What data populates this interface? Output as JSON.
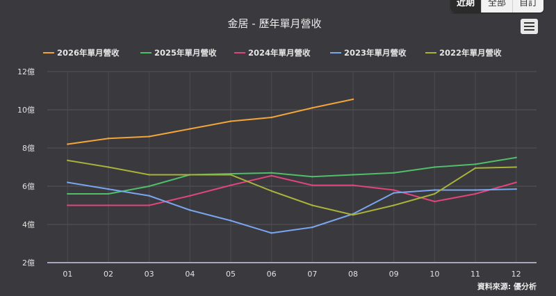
{
  "toolbar": {
    "tabs": [
      {
        "label": "近期",
        "active": true
      },
      {
        "label": "全部",
        "active": false
      },
      {
        "label": "自訂",
        "active": false
      }
    ],
    "menu_icon": "hamburger-menu-icon"
  },
  "chart_data": {
    "type": "line",
    "title": "金居 - 歷年單月營收",
    "categories": [
      "01",
      "02",
      "03",
      "04",
      "05",
      "06",
      "07",
      "08",
      "09",
      "10",
      "11",
      "12"
    ],
    "y_axis": {
      "min": 2,
      "max": 12,
      "ticks": [
        2,
        4,
        6,
        8,
        10,
        12
      ],
      "unit_suffix": "億"
    },
    "grid": true,
    "legend_position": "top",
    "source": "資料來源: 優分析",
    "series": [
      {
        "name": "2026年單月營收",
        "color": "#f3a43a",
        "values": [
          8.2,
          8.5,
          8.6,
          9.0,
          9.4,
          9.6,
          10.1,
          10.55,
          null,
          null,
          null,
          null
        ]
      },
      {
        "name": "2025年單月營收",
        "color": "#4fbf6b",
        "values": [
          5.6,
          5.6,
          6.0,
          6.6,
          6.65,
          6.7,
          6.5,
          6.6,
          6.7,
          7.0,
          7.15,
          7.5
        ]
      },
      {
        "name": "2024年單月營收",
        "color": "#e0457b",
        "values": [
          5.0,
          5.0,
          5.0,
          5.5,
          6.05,
          6.55,
          6.05,
          6.05,
          5.8,
          5.2,
          5.6,
          6.2
        ]
      },
      {
        "name": "2023年單月營收",
        "color": "#7aa6f0",
        "values": [
          6.2,
          5.85,
          5.5,
          4.75,
          4.2,
          3.55,
          3.85,
          4.55,
          5.65,
          5.8,
          5.8,
          5.85
        ]
      },
      {
        "name": "2022年單月營收",
        "color": "#a9b23a",
        "values": [
          7.35,
          7.0,
          6.6,
          6.6,
          6.6,
          5.75,
          5.0,
          4.5,
          5.0,
          5.6,
          6.95,
          7.0
        ]
      }
    ]
  }
}
